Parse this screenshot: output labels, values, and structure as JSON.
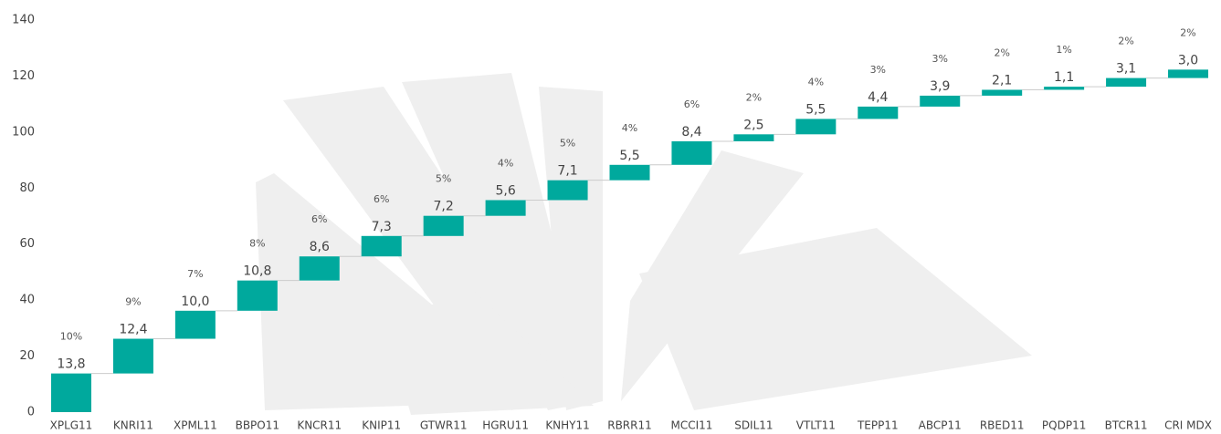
{
  "chart_data": {
    "type": "waterfall",
    "categories": [
      "XPLG11",
      "KNRI11",
      "XPML11",
      "BBPO11",
      "KNCR11",
      "KNIP11",
      "GTWR11",
      "HGRU11",
      "KNHY11",
      "RBRR11",
      "MCCI11",
      "SDIL11",
      "VTLT11",
      "TEPP11",
      "ABCP11",
      "RBED11",
      "PQDP11",
      "BTCR11",
      "CRI MDX"
    ],
    "values": [
      13.8,
      12.4,
      10.0,
      10.8,
      8.6,
      7.3,
      7.2,
      5.6,
      7.1,
      5.5,
      8.4,
      2.5,
      5.5,
      4.4,
      3.9,
      2.1,
      1.1,
      3.1,
      3.0
    ],
    "value_labels": [
      "13,8",
      "12,4",
      "10,0",
      "10,8",
      "8,6",
      "7,3",
      "7,2",
      "5,6",
      "7,1",
      "5,5",
      "8,4",
      "2,5",
      "5,5",
      "4,4",
      "3,9",
      "2,1",
      "1,1",
      "3,1",
      "3,0"
    ],
    "percent_labels": [
      "10%",
      "9%",
      "7%",
      "8%",
      "6%",
      "6%",
      "5%",
      "4%",
      "5%",
      "4%",
      "6%",
      "2%",
      "4%",
      "3%",
      "3%",
      "2%",
      "1%",
      "2%",
      "2%"
    ],
    "color": "#00a99d",
    "ylim": [
      0,
      140
    ],
    "yticks": [
      0,
      20,
      40,
      60,
      80,
      100,
      120,
      140
    ],
    "grid": false
  }
}
